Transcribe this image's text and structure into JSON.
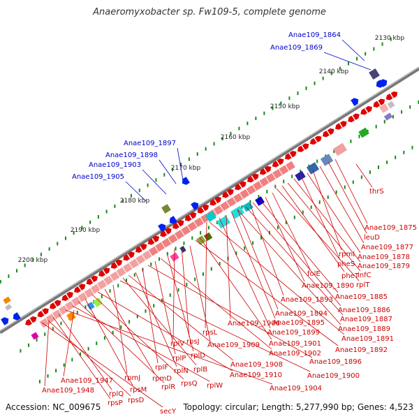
{
  "title": "Anaeromyxobacter sp. Fw109-5, complete genome",
  "accession": "Accession: NC_009675",
  "summary": "Topology: circular; Length: 5,277,990 bp; Genes: 4,523",
  "kbp_ticks": [
    "2130 kbp",
    "2140 kbp",
    "2150 kbp",
    "2160 kbp",
    "2170 kbp",
    "2180 kbp",
    "2190 kbp",
    "2200 kbp"
  ],
  "gene_labels_outer": [
    "Anae109_1864",
    "Anae109_1869",
    "Anae109_1897",
    "Anae109_1898",
    "Anae109_1903",
    "Anae109_1905"
  ],
  "gene_labels_inner": [
    "thrS",
    "Anae109_1875",
    "leuD",
    "Anae109_1877",
    "rpmI",
    "Anae109_1878",
    "pheS",
    "Anae109_1879",
    "infC",
    "pheT",
    "rplT",
    "folE",
    "Anae109_1890",
    "Anae109_1885",
    "Anae109_1893",
    "Anae109_1886",
    "Anae109_1894",
    "Anae109_1887",
    "Anae109_1895",
    "Anae109_1889",
    "Anae109_1906",
    "Anae109_1899",
    "rpsL",
    "Anae109_1891",
    "rplV",
    "rpsJ",
    "Anae109_1901",
    "Anae109_1892",
    "Anae109_1909",
    "rplD",
    "Anae109_1902",
    "rplP",
    "Anae109_1896",
    "rplF",
    "rplN",
    "Anae109_1908",
    "rplB",
    "Anae109_1900",
    "rpmJ",
    "rpmD",
    "Anae109_1910",
    "rpsQ",
    "Anae109_1947",
    "rpsM",
    "rplR",
    "rplW",
    "Anae109_1904",
    "Anae109_1948",
    "rplQ",
    "rpsP",
    "rpsD",
    "secY"
  ],
  "colors": {
    "outer_label": "#0000cc",
    "inner_label": "#cc0000",
    "tick": "#1a8a1a",
    "backbone": "#777777"
  }
}
